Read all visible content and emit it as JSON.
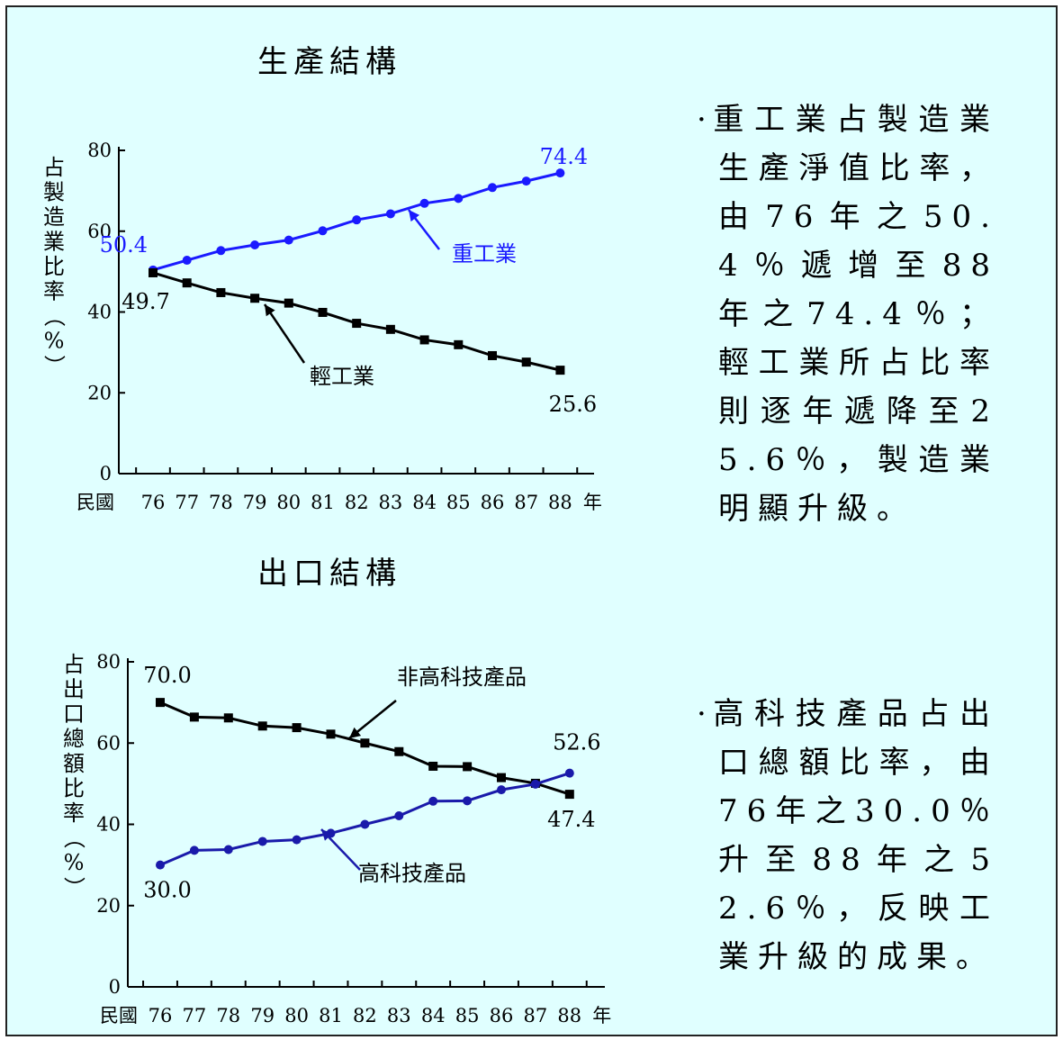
{
  "chart_data": [
    {
      "type": "line",
      "title": "生產結構",
      "ylabel": "占製造業比率（%）",
      "xlabel_prefix": "民國",
      "xlabel_suffix": "年",
      "categories": [
        "76",
        "77",
        "78",
        "79",
        "80",
        "81",
        "82",
        "83",
        "84",
        "85",
        "86",
        "87",
        "88"
      ],
      "ylim": [
        0,
        80
      ],
      "yticks": [
        0,
        20,
        40,
        60,
        80
      ],
      "grid": false,
      "series": [
        {
          "name": "重工業",
          "color": "#1a1aff",
          "marker": "circle",
          "values": [
            50.4,
            52.8,
            55.2,
            56.6,
            57.8,
            60.1,
            62.8,
            64.3,
            66.9,
            68.1,
            70.8,
            72.4,
            74.4
          ],
          "start_label": "50.4",
          "end_label": "74.4"
        },
        {
          "name": "輕工業",
          "color": "#000000",
          "marker": "square",
          "values": [
            49.7,
            47.2,
            44.8,
            43.4,
            42.2,
            39.9,
            37.2,
            35.7,
            33.1,
            31.9,
            29.2,
            27.6,
            25.6
          ],
          "start_label": "49.7",
          "end_label": "25.6"
        }
      ]
    },
    {
      "type": "line",
      "title": "出口結構",
      "ylabel": "占出口總額比率（%）",
      "xlabel_prefix": "民國",
      "xlabel_suffix": "年",
      "categories": [
        "76",
        "77",
        "78",
        "79",
        "80",
        "81",
        "82",
        "83",
        "84",
        "85",
        "86",
        "87",
        "88"
      ],
      "ylim": [
        0,
        80
      ],
      "yticks": [
        0,
        20,
        40,
        60,
        80
      ],
      "grid": false,
      "series": [
        {
          "name": "非高科技產品",
          "color": "#000000",
          "marker": "square",
          "values": [
            70.0,
            66.4,
            66.2,
            64.2,
            63.8,
            62.2,
            60.0,
            57.9,
            54.3,
            54.2,
            51.5,
            50.1,
            47.4
          ],
          "start_label": "70.0",
          "end_label": "47.4"
        },
        {
          "name": "高科技產品",
          "color": "#1a1aaa",
          "marker": "circle",
          "values": [
            30.0,
            33.6,
            33.8,
            35.8,
            36.2,
            37.8,
            40.0,
            42.1,
            45.7,
            45.8,
            48.5,
            49.9,
            52.6
          ],
          "start_label": "30.0",
          "end_label": "52.6"
        }
      ]
    }
  ],
  "notes": [
    {
      "bullet": "·",
      "text": "重工業占製造業生產淨值比率，由76年之50.4％遞增至88年之74.4％；輕工業所占比率則逐年遞降至25.6％，製造業明顯升級。"
    },
    {
      "bullet": "·",
      "text": "高科技產品占出口總額比率，由76年之30.0％升至88年之52.6％，反映工業升級的成果。"
    }
  ]
}
